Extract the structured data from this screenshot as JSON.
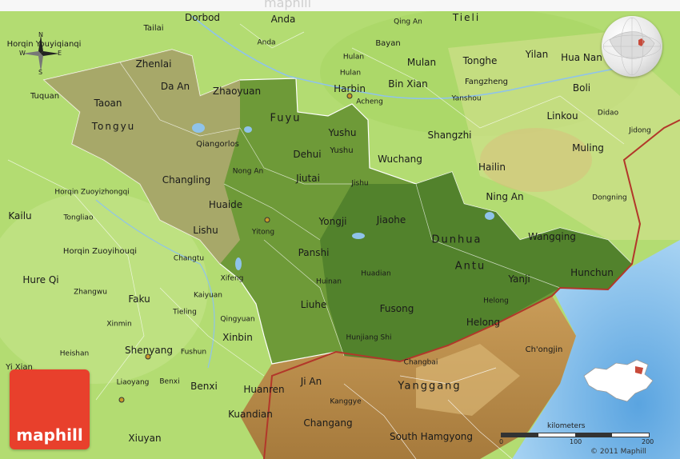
{
  "map": {
    "header_ghost": "maphill",
    "brand": "maphill",
    "copyright": "© 2011 Maphill",
    "compass": {
      "n": "N",
      "s": "S",
      "w": "W",
      "e": "E"
    },
    "scale": {
      "title": "kilometers",
      "ticks": [
        "0",
        "100",
        "200"
      ]
    },
    "colors": {
      "lowland": "#a9d66b",
      "region_shaded": "#5e8b2e",
      "mountain": "#c8a064",
      "sea": "#8fc3ea",
      "border_red": "#b2372a",
      "brand": "#e8402c"
    },
    "places": {
      "dorbod": "Dorbod",
      "anda_top": "Anda",
      "qing_an": "Qing An",
      "tieli": "Tieli",
      "horqin_youyi": "Horqin Youyiqianqi",
      "tailai": "Tailai",
      "anda": "Anda",
      "bayan": "Bayan",
      "hulan_a": "Hulan",
      "zhenlai": "Zhenlai",
      "mulan": "Mulan",
      "tonghe": "Tonghe",
      "yilan": "Yilan",
      "huanan": "Hua Nan",
      "hulan_b": "Hulan",
      "daan": "Da An",
      "harbin": "Harbin",
      "binxian": "Bin Xian",
      "fangzheng": "Fangzheng",
      "tuquan": "Tuquan",
      "zhaoyuan": "Zhaoyuan",
      "acheng": "Acheng",
      "yanshou": "Yanshou",
      "boli": "Boli",
      "taoan": "Taoan",
      "fuyu": "Fuyu",
      "linkou": "Linkou",
      "didao": "Didao",
      "tongyu": "Tongyu",
      "yushu": "Yushu",
      "shangzhi": "Shangzhi",
      "jidong": "Jidong",
      "qiangorlos": "Qiangorlos",
      "yushu2": "Yushu",
      "dehui": "Dehui",
      "muling": "Muling",
      "wuchang": "Wuchang",
      "hailin": "Hailin",
      "nongan": "Nong An",
      "changling": "Changling",
      "jiutai": "Jiutai",
      "jishu": "Jishu",
      "horqin_zuoyi_zhong": "Horqin Zuoyizhongqi",
      "ningan": "Ning An",
      "dongning": "Dongning",
      "kailu": "Kailu",
      "huaide": "Huaide",
      "tongliao": "Tongliao",
      "yongji": "Yongji",
      "jiaohe": "Jiaohe",
      "lishu": "Lishu",
      "yitong": "Yitong",
      "wangqing": "Wangqing",
      "horqin_zuoyi_hou": "Horqin Zuoyihouqi",
      "dunhua": "Dunhua",
      "changtu": "Changtu",
      "panshi": "Panshi",
      "antu": "Antu",
      "hunchun": "Hunchun",
      "hureqi": "Hure Qi",
      "xifeng": "Xifeng",
      "huadian": "Huadian",
      "yanji": "Yanji",
      "huinan": "Huinan",
      "zhangwu": "Zhangwu",
      "faku": "Faku",
      "kaiyuan": "Kaiyuan",
      "liuhe": "Liuhe",
      "fusong": "Fusong",
      "helong_small": "Helong",
      "tieling": "Tieling",
      "qingyuan": "Qingyuan",
      "helong": "Helong",
      "xinmin": "Xinmin",
      "xinbin": "Xinbin",
      "hunjiang": "Hunjiang Shi",
      "chongjin": "Ch'ongjin",
      "heishan": "Heishan",
      "shenyang": "Shenyang",
      "fushun": "Fushun",
      "changbai": "Changbai",
      "yixian": "Yi Xian",
      "liaoyang": "Liaoyang",
      "benxi_small": "Benxi",
      "benxi": "Benxi",
      "jian": "Ji An",
      "yanggang": "Yanggang",
      "huanren": "Huanren",
      "kanggye": "Kanggye",
      "kuandian": "Kuandian",
      "changang": "Changang",
      "south_hamgyong": "South Hamgyong",
      "xiuyan": "Xiuyan"
    }
  }
}
